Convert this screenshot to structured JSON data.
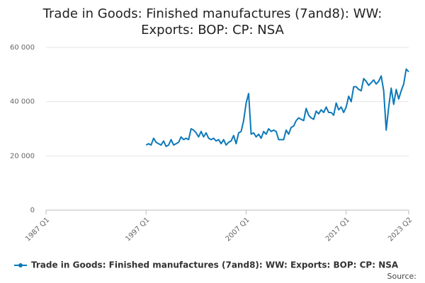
{
  "chart_data": {
    "type": "line",
    "title": "Trade in Goods: Finished manufactures (7and8): WW: Exports: BOP: CP: NSA",
    "source": "Source:",
    "categories": [
      "1987 Q1",
      null,
      null,
      null,
      null,
      null,
      null,
      null,
      null,
      null,
      null,
      null,
      null,
      null,
      null,
      null,
      null,
      null,
      null,
      null,
      null,
      null,
      null,
      null,
      null,
      null,
      null,
      null,
      null,
      null,
      null,
      null,
      null,
      null,
      null,
      null,
      null,
      null,
      null,
      null,
      "1997 Q1",
      null,
      null,
      null,
      null,
      null,
      null,
      null,
      null,
      null,
      null,
      null,
      null,
      null,
      null,
      null,
      null,
      null,
      null,
      null,
      null,
      null,
      null,
      null,
      null,
      null,
      null,
      null,
      null,
      null,
      null,
      null,
      null,
      null,
      null,
      null,
      null,
      null,
      null,
      null,
      "2007 Q1",
      null,
      null,
      null,
      null,
      null,
      null,
      null,
      null,
      null,
      null,
      null,
      null,
      null,
      null,
      null,
      null,
      null,
      null,
      null,
      null,
      null,
      null,
      null,
      null,
      null,
      null,
      null,
      null,
      null,
      null,
      null,
      null,
      null,
      null,
      null,
      null,
      null,
      null,
      null,
      "2017 Q1",
      null,
      null,
      null,
      null,
      null,
      null,
      null,
      null,
      null,
      null,
      null,
      null,
      null,
      null,
      null,
      null,
      null,
      null,
      null,
      null,
      null,
      null,
      null,
      null,
      "2023 Q2"
    ],
    "series": [
      {
        "name": "Trade in Goods: Finished manufactures (7and8): WW: Exports: BOP: CP: NSA",
        "color": "#0b79b8",
        "values": [
          null,
          null,
          null,
          null,
          null,
          null,
          null,
          null,
          null,
          null,
          null,
          null,
          null,
          null,
          null,
          null,
          null,
          null,
          null,
          null,
          null,
          null,
          null,
          null,
          null,
          null,
          null,
          null,
          null,
          null,
          null,
          null,
          null,
          null,
          null,
          null,
          null,
          null,
          null,
          null,
          24000,
          24500,
          24000,
          26500,
          25000,
          24500,
          24000,
          25500,
          23500,
          24000,
          26000,
          24000,
          24500,
          25000,
          27000,
          26000,
          26500,
          26000,
          30000,
          29500,
          28500,
          27000,
          29000,
          27000,
          28500,
          26500,
          26000,
          26500,
          25500,
          26000,
          24500,
          26000,
          24000,
          25000,
          25500,
          27500,
          24500,
          28500,
          29000,
          33000,
          39500,
          43000,
          28000,
          28500,
          27000,
          28000,
          26500,
          29000,
          28000,
          30000,
          29000,
          29500,
          29000,
          26000,
          26000,
          26000,
          29500,
          28000,
          30500,
          31000,
          33000,
          34000,
          33500,
          33000,
          37500,
          35000,
          34000,
          33500,
          36500,
          35500,
          37000,
          36000,
          38000,
          36000,
          36000,
          35000,
          39500,
          37000,
          38000,
          36000,
          38000,
          42000,
          40000,
          45500,
          45500,
          44500,
          44000,
          48500,
          47500,
          46000,
          47000,
          48000,
          46500,
          47500,
          49500,
          44000,
          29500,
          38000,
          45000,
          39000,
          44500,
          41000,
          44000,
          46500,
          52000,
          51000
        ]
      }
    ],
    "ylim": [
      0,
      60000
    ],
    "yticks": [
      0,
      {
        "value": 20000,
        "label": "20 000"
      },
      {
        "value": 40000,
        "label": "40 000"
      },
      {
        "value": 60000,
        "label": "60 000"
      }
    ],
    "grid": true
  }
}
